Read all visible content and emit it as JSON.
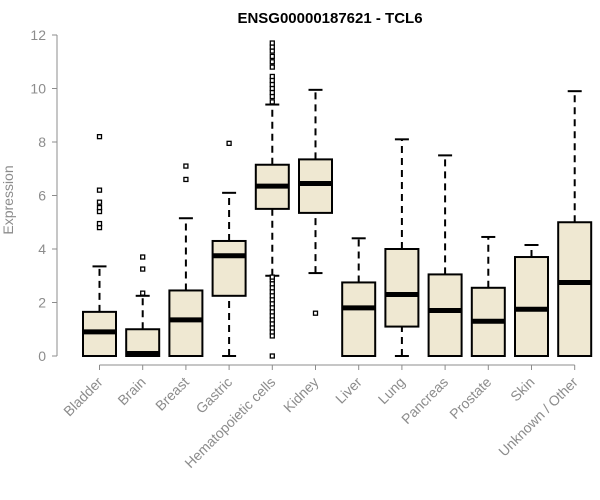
{
  "chart_data": {
    "type": "boxplot",
    "title": "ENSG00000187621 - TCL6",
    "xlabel": "",
    "ylabel": "Expression",
    "ylim": [
      0,
      12
    ],
    "yticks": [
      0,
      2,
      4,
      6,
      8,
      10,
      12
    ],
    "box_fill": "#efe8d2",
    "box_stroke": "#000000",
    "categories": [
      "Bladder",
      "Brain",
      "Breast",
      "Gastric",
      "Hematopoietic cells",
      "Kidney",
      "Liver",
      "Lung",
      "Pancreas",
      "Prostate",
      "Skin",
      "Unknown / Other"
    ],
    "boxes": [
      {
        "category": "Bladder",
        "q1": 0.0,
        "median": 0.9,
        "q3": 1.65,
        "whisker_low": 0.0,
        "whisker_high": 3.35,
        "outliers": [
          4.8,
          4.95,
          5.4,
          5.55,
          5.75,
          6.2,
          8.2
        ]
      },
      {
        "category": "Brain",
        "q1": 0.0,
        "median": 0.05,
        "q3": 1.0,
        "whisker_low": 0.0,
        "whisker_high": 2.25,
        "outliers": [
          2.35,
          3.25,
          3.7
        ]
      },
      {
        "category": "Breast",
        "q1": 0.0,
        "median": 1.35,
        "q3": 2.45,
        "whisker_low": 0.0,
        "whisker_high": 5.15,
        "outliers": [
          6.6,
          7.1
        ]
      },
      {
        "category": "Gastric",
        "q1": 2.25,
        "median": 3.75,
        "q3": 4.3,
        "whisker_low": 0.0,
        "whisker_high": 6.1,
        "outliers": [
          7.95
        ]
      },
      {
        "category": "Hematopoietic cells",
        "q1": 5.5,
        "median": 6.35,
        "q3": 7.15,
        "whisker_low": 3.0,
        "whisker_high": 9.4,
        "outliers": [
          0.0,
          0.75,
          0.9,
          1.05,
          1.2,
          1.35,
          1.5,
          1.65,
          1.8,
          1.95,
          2.1,
          2.25,
          2.4,
          2.55,
          2.7,
          2.85,
          2.95,
          9.5,
          9.7,
          9.85,
          10.0,
          10.15,
          10.3,
          10.45,
          10.8,
          11.0,
          11.2,
          11.4,
          11.55,
          11.7
        ]
      },
      {
        "category": "Kidney",
        "q1": 5.35,
        "median": 6.45,
        "q3": 7.35,
        "whisker_low": 3.1,
        "whisker_high": 9.95,
        "outliers": [
          1.6
        ]
      },
      {
        "category": "Liver",
        "q1": 0.0,
        "median": 1.8,
        "q3": 2.75,
        "whisker_low": 0.0,
        "whisker_high": 4.4,
        "outliers": []
      },
      {
        "category": "Lung",
        "q1": 1.1,
        "median": 2.3,
        "q3": 4.0,
        "whisker_low": 0.0,
        "whisker_high": 8.1,
        "outliers": []
      },
      {
        "category": "Pancreas",
        "q1": 0.0,
        "median": 1.7,
        "q3": 3.05,
        "whisker_low": 0.0,
        "whisker_high": 7.5,
        "outliers": []
      },
      {
        "category": "Prostate",
        "q1": 0.0,
        "median": 1.3,
        "q3": 2.55,
        "whisker_low": 0.0,
        "whisker_high": 4.45,
        "outliers": []
      },
      {
        "category": "Skin",
        "q1": 0.0,
        "median": 1.75,
        "q3": 3.7,
        "whisker_low": 0.0,
        "whisker_high": 4.15,
        "outliers": []
      },
      {
        "category": "Unknown / Other",
        "q1": 0.0,
        "median": 2.75,
        "q3": 5.0,
        "whisker_low": 0.0,
        "whisker_high": 9.9,
        "outliers": []
      }
    ]
  }
}
